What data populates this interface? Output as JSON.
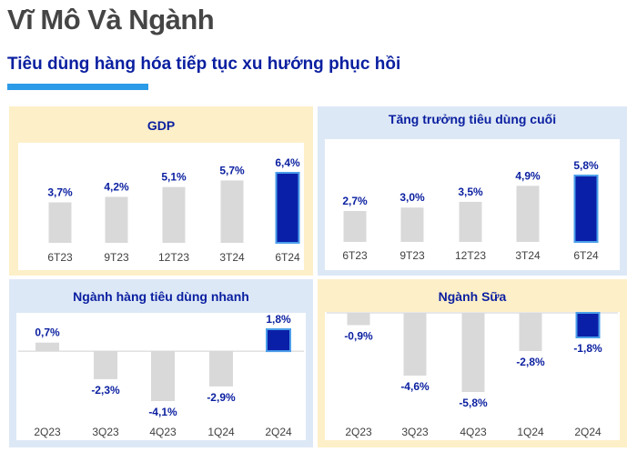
{
  "page": {
    "title": "Vĩ Mô Và Ngành",
    "subtitle": "Tiêu dùng hàng hóa tiếp tục xu hướng phục hồi",
    "colors": {
      "accent": "#2b9be8",
      "title": "#454545",
      "brand_blue": "#0a1fa0",
      "bar_gray": "#d9d9d9",
      "bar_highlight": "#0a1fa8",
      "highlight_border": "#4a9eea",
      "panel_cream": "#fdefc8",
      "panel_blue": "#dde8f6"
    }
  },
  "chart_data": [
    {
      "id": "gdp",
      "type": "bar",
      "title": "GDP",
      "categories": [
        "6T23",
        "9T23",
        "12T23",
        "3T24",
        "6T24"
      ],
      "values": [
        3.7,
        4.2,
        5.1,
        5.7,
        6.4
      ],
      "labels": [
        "3,7%",
        "4,2%",
        "5,1%",
        "5,7%",
        "6,4%"
      ],
      "highlight_index": 4,
      "ylim": [
        0,
        6.4
      ]
    },
    {
      "id": "final-consumption",
      "type": "bar",
      "title": "Tăng trưởng tiêu dùng cuối",
      "categories": [
        "6T23",
        "9T23",
        "12T23",
        "3T24",
        "6T24"
      ],
      "values": [
        2.7,
        3.0,
        3.5,
        4.9,
        5.8
      ],
      "labels": [
        "2,7%",
        "3,0%",
        "3,5%",
        "4,9%",
        "5,8%"
      ],
      "highlight_index": 4,
      "ylim": [
        0,
        5.8
      ]
    },
    {
      "id": "fmcg",
      "type": "bar",
      "title": "Ngành hàng tiêu dùng nhanh",
      "categories": [
        "2Q23",
        "3Q23",
        "4Q23",
        "1Q24",
        "2Q24"
      ],
      "values": [
        0.7,
        -2.3,
        -4.1,
        -2.9,
        1.8
      ],
      "labels": [
        "0,7%",
        "-2,3%",
        "-4,1%",
        "-2,9%",
        "1,8%"
      ],
      "highlight_index": 4,
      "ylim": [
        -4.1,
        1.8
      ]
    },
    {
      "id": "dairy",
      "type": "bar",
      "title": "Ngành Sữa",
      "categories": [
        "2Q23",
        "3Q23",
        "4Q23",
        "1Q24",
        "2Q24"
      ],
      "values": [
        -0.9,
        -4.6,
        -5.8,
        -2.8,
        -1.8
      ],
      "labels": [
        "-0,9%",
        "-4,6%",
        "-5,8%",
        "-2,8%",
        "-1,8%"
      ],
      "highlight_index": 4,
      "ylim": [
        -5.8,
        0
      ]
    }
  ]
}
